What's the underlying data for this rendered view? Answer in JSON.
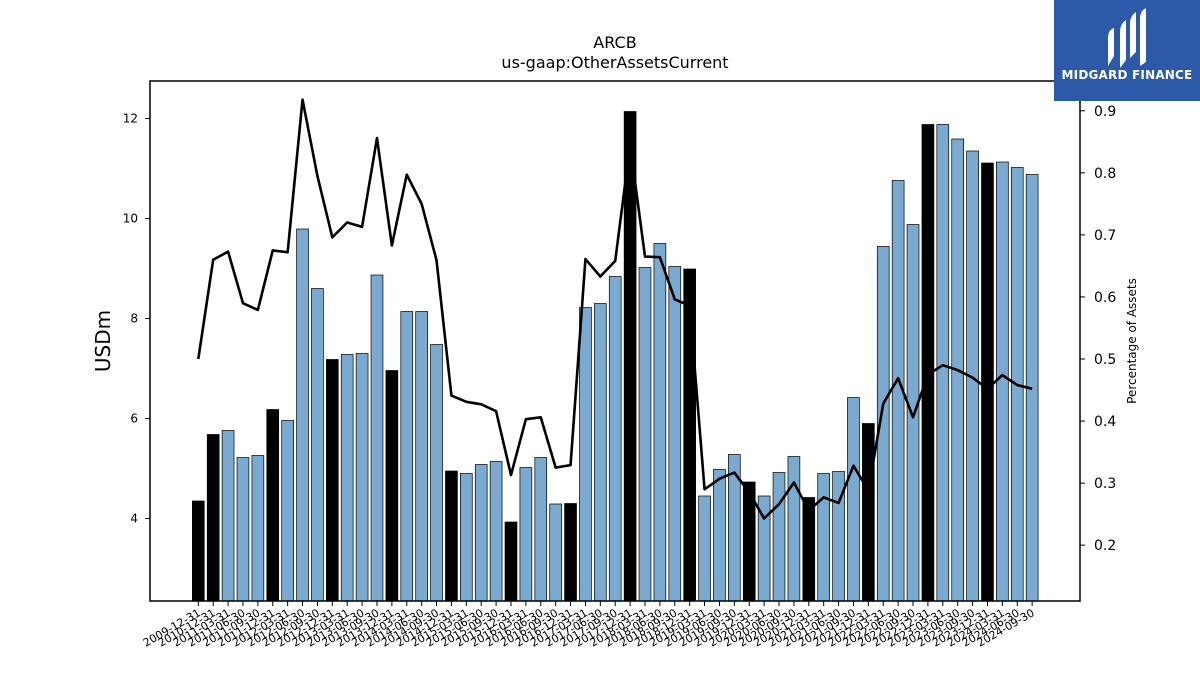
{
  "chart_data": {
    "type": "bar",
    "title": "ARCB",
    "subtitle": "us-gaap:OtherAssetsCurrent",
    "ylabel": "USDm",
    "y2label": "Percentage of Assets",
    "ylim": [
      2.35,
      12.75
    ],
    "y2lim": [
      0.11,
      0.948
    ],
    "yticks": [
      4,
      6,
      8,
      10,
      12
    ],
    "y2ticks": [
      0.2,
      0.3,
      0.4,
      0.5,
      0.6,
      0.7,
      0.8,
      0.9
    ],
    "categories": [
      "2009-12-31",
      "2010-12-31",
      "2011-03-31",
      "2011-06-30",
      "2011-09-30",
      "2011-12-31",
      "2012-03-31",
      "2012-06-30",
      "2012-09-30",
      "2012-12-31",
      "2013-03-31",
      "2013-06-30",
      "2013-09-30",
      "2013-12-31",
      "2014-03-31",
      "2014-06-30",
      "2014-09-30",
      "2014-12-31",
      "2015-03-31",
      "2015-06-30",
      "2015-09-30",
      "2015-12-31",
      "2016-03-31",
      "2016-06-30",
      "2016-09-30",
      "2016-12-31",
      "2017-03-31",
      "2017-06-30",
      "2017-09-30",
      "2017-12-31",
      "2018-03-31",
      "2018-06-30",
      "2018-09-30",
      "2018-12-31",
      "2019-03-31",
      "2019-06-30",
      "2019-09-30",
      "2019-12-31",
      "2020-03-31",
      "2020-06-30",
      "2020-09-30",
      "2020-12-31",
      "2021-03-31",
      "2021-06-30",
      "2021-09-30",
      "2021-12-31",
      "2022-03-31",
      "2022-06-30",
      "2022-09-30",
      "2022-12-31",
      "2023-03-31",
      "2023-06-30",
      "2023-09-30",
      "2023-12-31",
      "2024-03-31",
      "2024-06-30",
      "2024-09-30"
    ],
    "series": [
      {
        "kind": "bar",
        "axis": "left",
        "values": [
          4.35,
          5.68,
          5.76,
          5.22,
          5.26,
          6.18,
          5.96,
          9.79,
          8.6,
          7.18,
          7.28,
          7.3,
          8.87,
          6.96,
          8.14,
          8.14,
          7.48,
          4.95,
          4.9,
          5.08,
          5.14,
          3.93,
          5.02,
          5.22,
          4.29,
          4.3,
          8.22,
          8.3,
          8.84,
          12.14,
          9.02,
          9.5,
          9.04,
          8.99,
          4.45,
          4.98,
          5.28,
          4.73,
          4.45,
          4.92,
          5.24,
          4.42,
          4.9,
          4.94,
          6.42,
          5.9,
          9.44,
          10.76,
          9.88,
          11.88,
          11.88,
          11.59,
          11.35,
          11.11,
          11.13,
          11.02,
          10.88
        ],
        "highlight": [
          true,
          true,
          false,
          false,
          false,
          true,
          false,
          false,
          false,
          true,
          false,
          false,
          false,
          true,
          false,
          false,
          false,
          true,
          false,
          false,
          false,
          true,
          false,
          false,
          false,
          true,
          false,
          false,
          false,
          true,
          false,
          false,
          false,
          true,
          false,
          false,
          false,
          true,
          false,
          false,
          false,
          true,
          false,
          false,
          false,
          true,
          false,
          false,
          false,
          true,
          false,
          false,
          false,
          true,
          false,
          false,
          false
        ]
      },
      {
        "kind": "line",
        "axis": "right",
        "values": [
          0.5,
          0.66,
          0.673,
          0.59,
          0.579,
          0.675,
          0.672,
          0.918,
          0.795,
          0.696,
          0.72,
          0.713,
          0.856,
          0.683,
          0.797,
          0.75,
          0.659,
          0.441,
          0.431,
          0.427,
          0.416,
          0.313,
          0.403,
          0.406,
          0.325,
          0.329,
          0.661,
          0.633,
          0.658,
          0.845,
          0.665,
          0.664,
          0.596,
          0.586,
          0.29,
          0.307,
          0.317,
          0.285,
          0.243,
          0.266,
          0.301,
          0.256,
          0.277,
          0.268,
          0.328,
          0.288,
          0.428,
          0.469,
          0.406,
          0.475,
          0.49,
          0.482,
          0.47,
          0.452,
          0.474,
          0.458,
          0.452
        ]
      }
    ],
    "colors": {
      "bar": "#7aaad0",
      "bar_highlight": "#000000",
      "line": "#000000",
      "bar_edge": "#000000"
    },
    "grid": false,
    "legend": "none"
  },
  "logo": {
    "text": "MIDGARD FINANCE",
    "background": "#2c5aa8"
  }
}
